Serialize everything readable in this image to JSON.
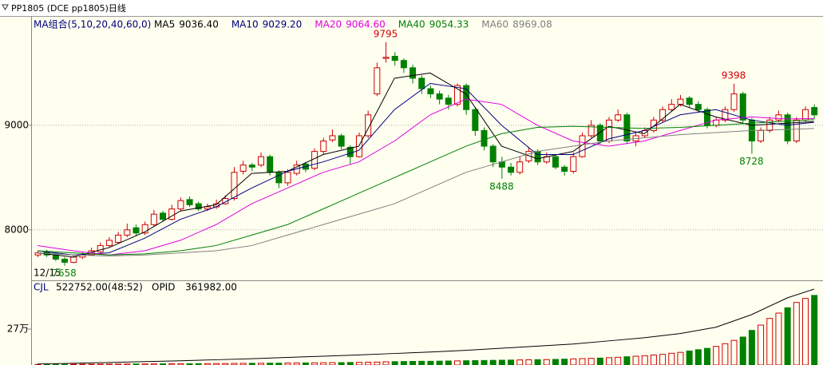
{
  "window_title": "PP1805  (DCE pp1805)日线",
  "chart_data": [
    {
      "type": "candlestick",
      "ylim": [
        7525,
        10030
      ],
      "yticks": [
        9000,
        8000
      ],
      "grid": true,
      "indicator_label": "MA组合(5,10,20,40,60,0)",
      "start_date": "12/15",
      "up_color": "#d00000",
      "down_color": "#008000",
      "candles": [
        [
          7760,
          7800,
          7740,
          7780
        ],
        [
          7790,
          7810,
          7740,
          7760
        ],
        [
          7760,
          7780,
          7700,
          7720
        ],
        [
          7720,
          7740,
          7658,
          7690
        ],
        [
          7690,
          7760,
          7680,
          7740
        ],
        [
          7740,
          7790,
          7720,
          7760
        ],
        [
          7760,
          7830,
          7750,
          7800
        ],
        [
          7790,
          7880,
          7780,
          7850
        ],
        [
          7850,
          7930,
          7830,
          7900
        ],
        [
          7880,
          7980,
          7870,
          7950
        ],
        [
          7950,
          8060,
          7930,
          8000
        ],
        [
          8020,
          8050,
          7940,
          7970
        ],
        [
          7970,
          8080,
          7950,
          8050
        ],
        [
          8050,
          8190,
          8030,
          8150
        ],
        [
          8160,
          8180,
          8080,
          8100
        ],
        [
          8100,
          8240,
          8090,
          8200
        ],
        [
          8200,
          8310,
          8180,
          8280
        ],
        [
          8290,
          8320,
          8220,
          8240
        ],
        [
          8250,
          8270,
          8180,
          8200
        ],
        [
          8200,
          8250,
          8180,
          8220
        ],
        [
          8220,
          8290,
          8200,
          8250
        ],
        [
          8250,
          8330,
          8240,
          8300
        ],
        [
          8300,
          8600,
          8280,
          8550
        ],
        [
          8560,
          8660,
          8530,
          8620
        ],
        [
          8620,
          8640,
          8560,
          8600
        ],
        [
          8620,
          8740,
          8600,
          8700
        ],
        [
          8700,
          8720,
          8520,
          8550
        ],
        [
          8550,
          8570,
          8400,
          8450
        ],
        [
          8450,
          8580,
          8420,
          8550
        ],
        [
          8540,
          8660,
          8520,
          8620
        ],
        [
          8630,
          8650,
          8550,
          8580
        ],
        [
          8590,
          8780,
          8570,
          8750
        ],
        [
          8750,
          8880,
          8720,
          8850
        ],
        [
          8860,
          8960,
          8840,
          8900
        ],
        [
          8900,
          8920,
          8770,
          8800
        ],
        [
          8790,
          8810,
          8630,
          8700
        ],
        [
          8700,
          8930,
          8690,
          8900
        ],
        [
          8900,
          9140,
          8880,
          9100
        ],
        [
          9300,
          9600,
          9280,
          9550
        ],
        [
          9640,
          9795,
          9600,
          9650
        ],
        [
          9660,
          9700,
          9570,
          9620
        ],
        [
          9620,
          9640,
          9500,
          9550
        ],
        [
          9550,
          9580,
          9400,
          9450
        ],
        [
          9450,
          9480,
          9300,
          9350
        ],
        [
          9350,
          9380,
          9260,
          9300
        ],
        [
          9300,
          9330,
          9200,
          9250
        ],
        [
          9260,
          9290,
          9150,
          9200
        ],
        [
          9200,
          9400,
          9180,
          9380
        ],
        [
          9380,
          9400,
          9100,
          9150
        ],
        [
          9150,
          9170,
          8900,
          8950
        ],
        [
          8950,
          8980,
          8760,
          8800
        ],
        [
          8800,
          8820,
          8600,
          8650
        ],
        [
          8650,
          8700,
          8488,
          8600
        ],
        [
          8600,
          8640,
          8520,
          8550
        ],
        [
          8550,
          8700,
          8530,
          8650
        ],
        [
          8660,
          8790,
          8640,
          8750
        ],
        [
          8750,
          8770,
          8620,
          8650
        ],
        [
          8650,
          8740,
          8630,
          8700
        ],
        [
          8700,
          8720,
          8580,
          8600
        ],
        [
          8600,
          8620,
          8520,
          8560
        ],
        [
          8560,
          8740,
          8540,
          8700
        ],
        [
          8700,
          8930,
          8690,
          8900
        ],
        [
          8900,
          9050,
          8880,
          9000
        ],
        [
          9000,
          9020,
          8820,
          8850
        ],
        [
          8850,
          9080,
          8830,
          9050
        ],
        [
          9050,
          9150,
          9030,
          9100
        ],
        [
          9100,
          9120,
          8820,
          8850
        ],
        [
          8850,
          8930,
          8800,
          8900
        ],
        [
          8900,
          8980,
          8880,
          8950
        ],
        [
          8950,
          9080,
          8930,
          9050
        ],
        [
          9050,
          9180,
          9030,
          9150
        ],
        [
          9150,
          9250,
          9130,
          9200
        ],
        [
          9200,
          9290,
          9180,
          9250
        ],
        [
          9260,
          9280,
          9170,
          9200
        ],
        [
          9200,
          9230,
          9120,
          9150
        ],
        [
          9150,
          9170,
          8970,
          9000
        ],
        [
          9000,
          9080,
          8980,
          9050
        ],
        [
          9050,
          9180,
          9030,
          9150
        ],
        [
          9150,
          9398,
          9130,
          9300
        ],
        [
          9300,
          9320,
          9020,
          9050
        ],
        [
          9050,
          9070,
          8728,
          8850
        ],
        [
          8850,
          8980,
          8830,
          8950
        ],
        [
          8950,
          9080,
          8930,
          9050
        ],
        [
          9050,
          9140,
          9030,
          9100
        ],
        [
          9100,
          9120,
          8820,
          8850
        ],
        [
          8850,
          9080,
          8830,
          9050
        ],
        [
          9050,
          9180,
          9030,
          9150
        ],
        [
          9170,
          9200,
          9060,
          9100
        ]
      ],
      "annotations": [
        {
          "index": 39,
          "value": 9795,
          "at": "above"
        },
        {
          "index": 52,
          "value": 8488,
          "at": "below"
        },
        {
          "index": 78,
          "value": 9398,
          "at": "above"
        },
        {
          "index": 80,
          "value": 8728,
          "at": "below"
        },
        {
          "index": 3,
          "value": 7658,
          "at": "below"
        }
      ],
      "ma_index": [
        0,
        4,
        8,
        12,
        16,
        20,
        24,
        28,
        32,
        36,
        40,
        44,
        48,
        52,
        56,
        60,
        64,
        68,
        72,
        76,
        80,
        84,
        87
      ],
      "series": [
        {
          "name": "MA5",
          "legend_value": "9036.40",
          "color": "#000000",
          "values": [
            7780,
            7740,
            7830,
            7980,
            8180,
            8240,
            8540,
            8560,
            8720,
            8800,
            9450,
            9500,
            9300,
            8800,
            8680,
            8750,
            8990,
            8920,
            9200,
            9080,
            9000,
            9020,
            9036
          ]
        },
        {
          "name": "MA10",
          "legend_value": "9029.20",
          "color": "#000080",
          "values": [
            7800,
            7760,
            7780,
            7920,
            8100,
            8220,
            8400,
            8560,
            8650,
            8760,
            9150,
            9400,
            9350,
            9000,
            8720,
            8720,
            8870,
            8950,
            9100,
            9150,
            9050,
            9000,
            9029
          ]
        },
        {
          "name": "MA20",
          "legend_value": "9064.60",
          "color": "#e000e0",
          "values": [
            7850,
            7800,
            7760,
            7800,
            7900,
            8050,
            8250,
            8400,
            8550,
            8650,
            8850,
            9100,
            9250,
            9200,
            9000,
            8850,
            8800,
            8850,
            8950,
            9050,
            9080,
            9060,
            9065
          ]
        },
        {
          "name": "MA40",
          "legend_value": "9054.33",
          "color": "#008000",
          "values": [
            7800,
            7780,
            7760,
            7770,
            7800,
            7850,
            7950,
            8050,
            8200,
            8350,
            8500,
            8650,
            8800,
            8920,
            8980,
            8990,
            8980,
            8970,
            8980,
            9000,
            9020,
            9040,
            9054
          ]
        },
        {
          "name": "MA60",
          "legend_value": "8969.08",
          "color": "#808080",
          "values": [
            7780,
            7760,
            7750,
            7760,
            7780,
            7800,
            7850,
            7950,
            8050,
            8150,
            8250,
            8400,
            8550,
            8650,
            8750,
            8800,
            8850,
            8880,
            8910,
            8930,
            8950,
            8960,
            8969
          ]
        }
      ]
    },
    {
      "type": "volume",
      "ylim": [
        0,
        630000
      ],
      "yticks": [
        {
          "value": 270000,
          "label": "27万"
        }
      ],
      "volume_name": "CJL",
      "volume_label": "522752.00(48:52)",
      "oi_name": "OPID",
      "oi_label": "361982.00",
      "volumes": [
        4000,
        4500,
        5000,
        5000,
        5500,
        6000,
        6000,
        6500,
        7000,
        7000,
        7500,
        8000,
        8000,
        8500,
        9000,
        9000,
        9500,
        10000,
        10000,
        10500,
        11000,
        11000,
        12000,
        12500,
        13000,
        13000,
        14000,
        14000,
        15000,
        15500,
        16000,
        16500,
        17000,
        18000,
        18000,
        19000,
        20000,
        21000,
        22000,
        24000,
        25000,
        26000,
        27000,
        28000,
        28000,
        29000,
        30000,
        31000,
        32000,
        33000,
        34000,
        35000,
        36000,
        37000,
        38000,
        39000,
        40000,
        41000,
        42000,
        44000,
        46000,
        48000,
        50000,
        52000,
        55000,
        58000,
        62000,
        66000,
        70000,
        75000,
        80000,
        88000,
        95000,
        105000,
        115000,
        125000,
        140000,
        160000,
        185000,
        210000,
        260000,
        300000,
        350000,
        390000,
        430000,
        470000,
        500000,
        522752
      ],
      "oi_ylim": [
        0,
        400000
      ],
      "oi_color": "#000000",
      "oi_values": [
        5000,
        8000,
        12000,
        16000,
        20000,
        25000,
        30000,
        36000,
        42000,
        48000,
        55000,
        62000,
        70000,
        80000,
        90000,
        100000,
        115000,
        130000,
        150000,
        180000,
        240000,
        320000,
        361982
      ]
    }
  ]
}
